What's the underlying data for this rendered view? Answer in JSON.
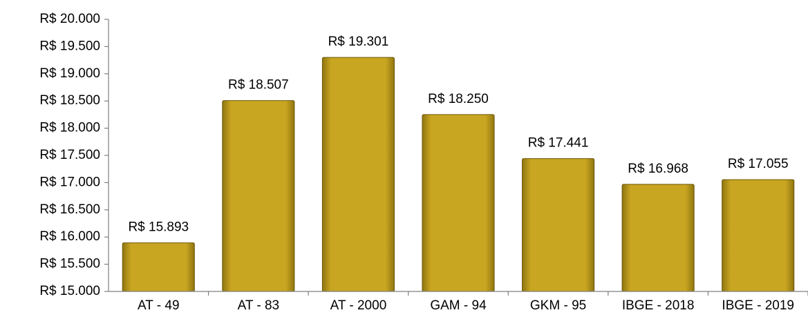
{
  "chart_data": {
    "type": "bar",
    "categories": [
      "AT - 49",
      "AT - 83",
      "AT - 2000",
      "GAM - 94",
      "GKM - 95",
      "IBGE - 2018",
      "IBGE - 2019"
    ],
    "values": [
      15893,
      18507,
      19301,
      18250,
      17441,
      16968,
      17055
    ],
    "value_labels": [
      "R$ 15.893",
      "R$ 18.507",
      "R$ 19.301",
      "R$ 18.250",
      "R$ 17.441",
      "R$ 16.968",
      "R$ 17.055"
    ],
    "color": "#c9a621",
    "ylim": [
      15000,
      20000
    ],
    "yticks": [
      {
        "value": 15000,
        "label": "R$ 15.000"
      },
      {
        "value": 15500,
        "label": "R$ 15.500"
      },
      {
        "value": 16000,
        "label": "R$ 16.000"
      },
      {
        "value": 16500,
        "label": "R$ 16.500"
      },
      {
        "value": 17000,
        "label": "R$ 17.000"
      },
      {
        "value": 17500,
        "label": "R$ 17.500"
      },
      {
        "value": 18000,
        "label": "R$ 18.000"
      },
      {
        "value": 18500,
        "label": "R$ 18.500"
      },
      {
        "value": 19000,
        "label": "R$ 19.000"
      },
      {
        "value": 19500,
        "label": "R$ 19.500"
      },
      {
        "value": 20000,
        "label": "R$ 20.000"
      }
    ],
    "grid": false
  }
}
